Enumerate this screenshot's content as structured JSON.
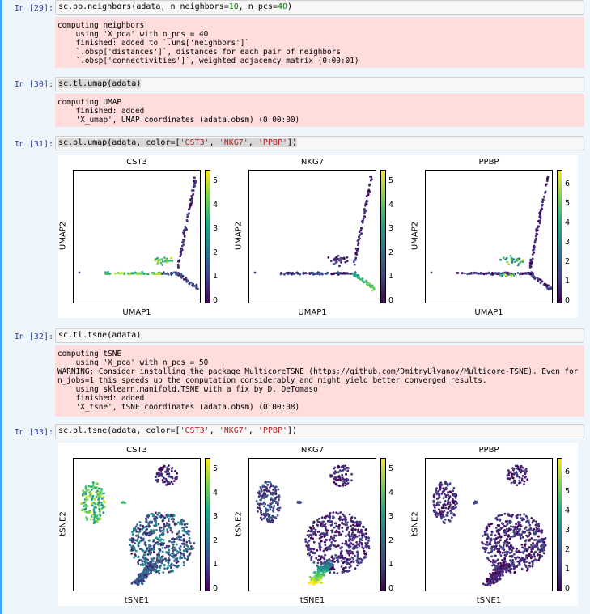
{
  "cells": [
    {
      "prompt": "In [29]:",
      "code": "sc.pp.neighbors(adata, n_neighbors=10, n_pcs=40)",
      "output": [
        "computing neighbors",
        "    using 'X_pca' with n_pcs = 40",
        "    finished: added to `.uns['neighbors']`",
        "    `.obsp['distances']`, distances for each pair of neighbors",
        "    `.obsp['connectivities']`, weighted adjacency matrix (0:00:01)"
      ]
    },
    {
      "prompt": "In [30]:",
      "code": "sc.tl.umap(adata)",
      "output": [
        "computing UMAP",
        "    finished: added",
        "    'X_umap', UMAP coordinates (adata.obsm) (0:00:00)"
      ]
    },
    {
      "prompt": "In [31]:",
      "code": "sc.pl.umap(adata, color=['CST3', 'NKG7', 'PPBP'])"
    },
    {
      "prompt": "In [32]:",
      "code": "sc.tl.tsne(adata)",
      "output": [
        "computing tSNE",
        "    using 'X_pca' with n_pcs = 50",
        "WARNING: Consider installing the package MulticoreTSNE (https://github.com/DmitryUlyanov/Multicore-TSNE). Even for",
        "n_jobs=1 this speeds up the computation considerably and might yield better converged results.",
        "    using sklearn.manifold.TSNE with a fix by D. DeTomaso",
        "    finished: added",
        "    'X_tsne', tSNE coordinates (adata.obsm) (0:00:08)"
      ]
    },
    {
      "prompt": "In [33]:",
      "code": "sc.pl.tsne(adata, color=['CST3', 'NKG7', 'PPBP'])"
    }
  ],
  "umap_figure": {
    "xlabel": "UMAP1",
    "ylabel": "UMAP2",
    "panels": [
      {
        "title": "CST3",
        "ticks": [
          "5",
          "4",
          "3",
          "2",
          "1",
          "0"
        ]
      },
      {
        "title": "NKG7",
        "ticks": [
          "5",
          "4",
          "3",
          "2",
          "1",
          "0"
        ]
      },
      {
        "title": "PPBP",
        "ticks": [
          "6",
          "5",
          "4",
          "3",
          "2",
          "1",
          "0"
        ]
      }
    ]
  },
  "tsne_figure": {
    "xlabel": "tSNE1",
    "ylabel": "tSNE2",
    "panels": [
      {
        "title": "CST3",
        "ticks": [
          "5",
          "4",
          "3",
          "2",
          "1",
          "0"
        ]
      },
      {
        "title": "NKG7",
        "ticks": [
          "5",
          "4",
          "3",
          "2",
          "1",
          "0"
        ]
      },
      {
        "title": "PPBP",
        "ticks": [
          "6",
          "5",
          "4",
          "3",
          "2",
          "1",
          "0"
        ]
      }
    ]
  },
  "colors": {
    "viridis_low": "#440154",
    "viridis_mid": "#21918c",
    "viridis_high": "#fde725",
    "prompt": "#303f9f",
    "output_bg": "#ffdddd"
  }
}
